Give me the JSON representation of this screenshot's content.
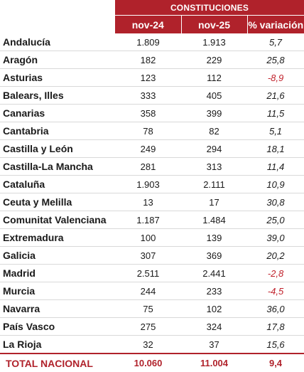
{
  "table": {
    "group_header": "CONSTITUCIONES",
    "columns": [
      "nov-24",
      "nov-25",
      "% variación"
    ],
    "rows": [
      {
        "region": "Andalucía",
        "nov24": "1.809",
        "nov25": "1.913",
        "variacion": "5,7",
        "negative": false
      },
      {
        "region": "Aragón",
        "nov24": "182",
        "nov25": "229",
        "variacion": "25,8",
        "negative": false
      },
      {
        "region": "Asturias",
        "nov24": "123",
        "nov25": "112",
        "variacion": "-8,9",
        "negative": true
      },
      {
        "region": "Balears, Illes",
        "nov24": "333",
        "nov25": "405",
        "variacion": "21,6",
        "negative": false
      },
      {
        "region": "Canarias",
        "nov24": "358",
        "nov25": "399",
        "variacion": "11,5",
        "negative": false
      },
      {
        "region": "Cantabria",
        "nov24": "78",
        "nov25": "82",
        "variacion": "5,1",
        "negative": false
      },
      {
        "region": "Castilla y León",
        "nov24": "249",
        "nov25": "294",
        "variacion": "18,1",
        "negative": false
      },
      {
        "region": "Castilla-La Mancha",
        "nov24": "281",
        "nov25": "313",
        "variacion": "11,4",
        "negative": false
      },
      {
        "region": "Cataluña",
        "nov24": "1.903",
        "nov25": "2.111",
        "variacion": "10,9",
        "negative": false
      },
      {
        "region": "Ceuta y Melilla",
        "nov24": "13",
        "nov25": "17",
        "variacion": "30,8",
        "negative": false
      },
      {
        "region": "Comunitat Valenciana",
        "nov24": "1.187",
        "nov25": "1.484",
        "variacion": "25,0",
        "negative": false
      },
      {
        "region": "Extremadura",
        "nov24": "100",
        "nov25": "139",
        "variacion": "39,0",
        "negative": false
      },
      {
        "region": "Galicia",
        "nov24": "307",
        "nov25": "369",
        "variacion": "20,2",
        "negative": false
      },
      {
        "region": "Madrid",
        "nov24": "2.511",
        "nov25": "2.441",
        "variacion": "-2,8",
        "negative": true
      },
      {
        "region": "Murcia",
        "nov24": "244",
        "nov25": "233",
        "variacion": "-4,5",
        "negative": true
      },
      {
        "region": "Navarra",
        "nov24": "75",
        "nov25": "102",
        "variacion": "36,0",
        "negative": false
      },
      {
        "region": "País Vasco",
        "nov24": "275",
        "nov25": "324",
        "variacion": "17,8",
        "negative": false
      },
      {
        "region": "La Rioja",
        "nov24": "32",
        "nov25": "37",
        "variacion": "15,6",
        "negative": false
      }
    ],
    "total": {
      "region": "TOTAL NACIONAL",
      "nov24": "10.060",
      "nov25": "11.004",
      "variacion": "9,4"
    }
  },
  "colors": {
    "header_bg": "#b0222b",
    "negative": "#c0202a",
    "total_text": "#b0222b"
  }
}
